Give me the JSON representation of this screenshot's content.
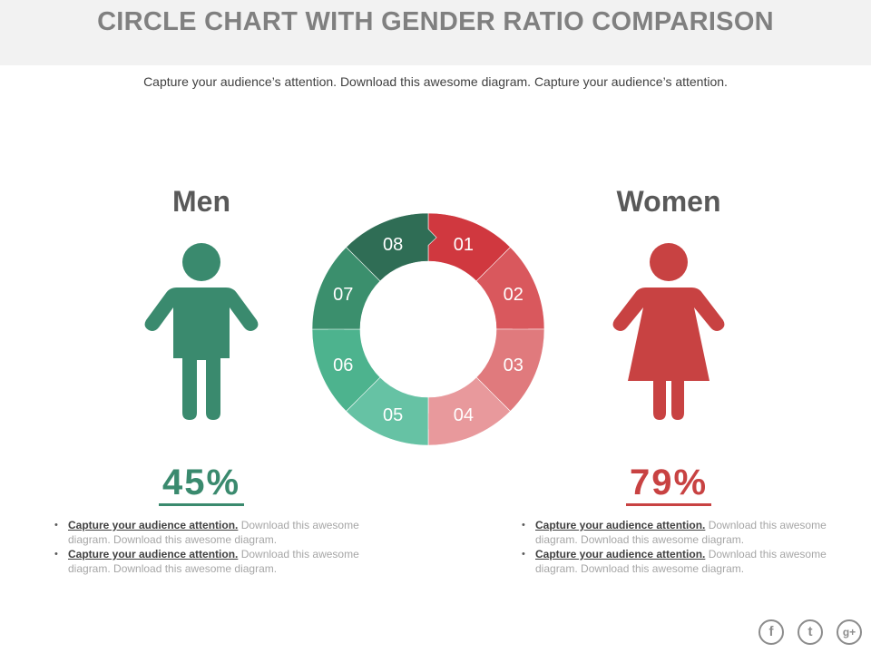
{
  "header": {
    "title": "CIRCLE CHART WITH GENDER RATIO COMPARISON",
    "subtitle": "Capture your audience’s attention. Download this awesome diagram. Capture your audience’s attention."
  },
  "men": {
    "label": "Men",
    "percent": "45%",
    "color": "#3a8a6e",
    "bullets": [
      {
        "lead": "Capture your audience attention.",
        "body": "Download this awesome diagram. Download this awesome diagram."
      },
      {
        "lead": "Capture your audience attention.",
        "body": "Download this awesome diagram. Download this awesome diagram."
      }
    ]
  },
  "women": {
    "label": "Women",
    "percent": "79%",
    "color": "#c84242",
    "bullets": [
      {
        "lead": "Capture your audience attention.",
        "body": "Download this awesome diagram. Download this awesome diagram."
      },
      {
        "lead": "Capture your audience attention.",
        "body": "Download this awesome diagram. Download this awesome diagram."
      }
    ]
  },
  "ring": {
    "segments": [
      {
        "label": "01",
        "color": "#d0383f"
      },
      {
        "label": "02",
        "color": "#d9585d"
      },
      {
        "label": "03",
        "color": "#e07a7d"
      },
      {
        "label": "04",
        "color": "#e8999c"
      },
      {
        "label": "05",
        "color": "#66c2a4"
      },
      {
        "label": "06",
        "color": "#4db38e"
      },
      {
        "label": "07",
        "color": "#3b8f6d"
      },
      {
        "label": "08",
        "color": "#2f6d55"
      }
    ]
  },
  "social": {
    "icons": [
      "facebook-icon",
      "twitter-icon",
      "googleplus-icon"
    ],
    "facebook_glyph": "f",
    "twitter_glyph": "t",
    "googleplus_glyph": "g+"
  }
}
